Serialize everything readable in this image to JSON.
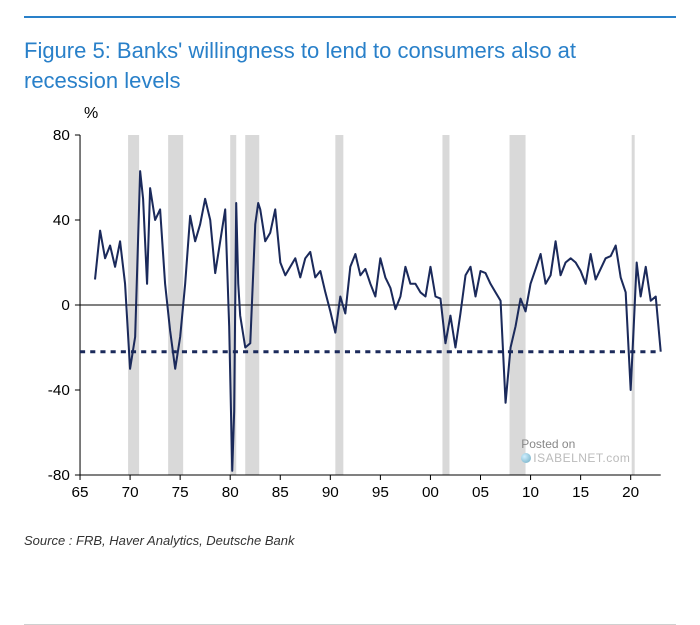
{
  "chart": {
    "type": "line",
    "title": "Figure 5: Banks' willingness to lend to consumers also at recession levels",
    "title_color": "#2980c9",
    "title_fontsize": 22,
    "border_top_color": "#2980c9",
    "ylabel": "%",
    "label_fontsize": 16,
    "background_color": "#ffffff",
    "xlim": [
      65,
      23
    ],
    "ylim": [
      -80,
      80
    ],
    "ytick_step": 40,
    "yticks": [
      -80,
      -40,
      0,
      40,
      80
    ],
    "xticks": [
      65,
      70,
      75,
      80,
      85,
      90,
      95,
      100,
      105,
      110,
      115,
      120
    ],
    "xtick_labels": [
      "65",
      "70",
      "75",
      "80",
      "85",
      "90",
      "95",
      "00",
      "05",
      "10",
      "15",
      "20"
    ],
    "axis_color": "#000000",
    "tick_fontsize": 15,
    "recession_bands": [
      {
        "start": 69.8,
        "end": 70.9
      },
      {
        "start": 73.8,
        "end": 75.3
      },
      {
        "start": 80.0,
        "end": 80.6
      },
      {
        "start": 81.5,
        "end": 82.9
      },
      {
        "start": 90.5,
        "end": 91.3
      },
      {
        "start": 101.2,
        "end": 101.9
      },
      {
        "start": 107.9,
        "end": 109.5
      },
      {
        "start": 120.1,
        "end": 120.4
      }
    ],
    "recession_color": "#d9d9d9",
    "threshold": {
      "value": -22,
      "color": "#1b2a5b",
      "dash": "5,5",
      "width": 3
    },
    "series": {
      "color": "#1b2a5b",
      "width": 2,
      "x": [
        66.5,
        67,
        67.5,
        68,
        68.5,
        69,
        69.5,
        70,
        70.5,
        71,
        71.3,
        71.7,
        72,
        72.5,
        73,
        73.5,
        74,
        74.5,
        75,
        75.5,
        76,
        76.5,
        77,
        77.5,
        78,
        78.5,
        79,
        79.5,
        79.9,
        80.2,
        80.4,
        80.6,
        80.8,
        81,
        81.5,
        82,
        82.5,
        82.8,
        83,
        83.5,
        84,
        84.5,
        85,
        85.5,
        86,
        86.5,
        87,
        87.5,
        88,
        88.5,
        89,
        89.5,
        90,
        90.5,
        91,
        91.5,
        92,
        92.5,
        93,
        93.5,
        94,
        94.5,
        95,
        95.5,
        96,
        96.5,
        97,
        97.5,
        98,
        98.5,
        99,
        99.5,
        100,
        100.5,
        101,
        101.5,
        102,
        102.5,
        103,
        103.5,
        104,
        104.5,
        105,
        105.5,
        106,
        106.5,
        107,
        107.5,
        108,
        108.5,
        109,
        109.5,
        110,
        110.5,
        111,
        111.5,
        112,
        112.5,
        113,
        113.5,
        114,
        114.5,
        115,
        115.5,
        116,
        116.5,
        117,
        117.5,
        118,
        118.5,
        119,
        119.5,
        120,
        120.3,
        120.6,
        121,
        121.5,
        122,
        122.5,
        123
      ],
      "y": [
        12,
        35,
        22,
        28,
        18,
        30,
        10,
        -30,
        -15,
        63,
        50,
        10,
        55,
        40,
        45,
        10,
        -12,
        -30,
        -15,
        10,
        42,
        30,
        38,
        50,
        40,
        15,
        30,
        45,
        -10,
        -78,
        -50,
        48,
        10,
        -5,
        -20,
        -18,
        38,
        48,
        45,
        30,
        34,
        45,
        20,
        14,
        18,
        22,
        13,
        22,
        25,
        13,
        16,
        6,
        -3,
        -13,
        4,
        -4,
        18,
        24,
        14,
        17,
        10,
        4,
        22,
        13,
        8,
        -2,
        4,
        18,
        10,
        10,
        6,
        4,
        18,
        4,
        3,
        -18,
        -5,
        -20,
        -4,
        14,
        18,
        4,
        16,
        15,
        10,
        6,
        2,
        -46,
        -20,
        -10,
        3,
        -3,
        10,
        17,
        24,
        10,
        14,
        30,
        14,
        20,
        22,
        20,
        16,
        10,
        24,
        12,
        17,
        22,
        23,
        28,
        13,
        6,
        -40,
        -10,
        20,
        4,
        18,
        2,
        4,
        -22
      ]
    }
  },
  "source": "Source : FRB, Haver Analytics, Deutsche Bank",
  "watermark": {
    "posted": "Posted on",
    "site": "ISABELNET.com"
  }
}
